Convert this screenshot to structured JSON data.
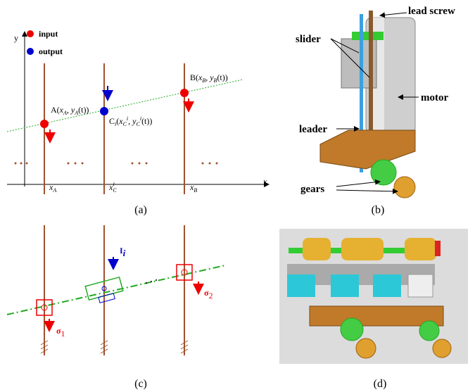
{
  "panel_a": {
    "legend": [
      "input",
      "output"
    ],
    "axis_x": "x",
    "axis_y": "y",
    "point_a": [
      "A(",
      "x",
      "A",
      ", ",
      "y",
      "A",
      "(t))"
    ],
    "point_b": [
      "B(",
      "x",
      "B",
      ", ",
      "y",
      "B",
      "(t))"
    ],
    "point_c": [
      "C",
      "i",
      "(",
      "x",
      "C",
      "i",
      ", ",
      "y",
      "C",
      "i",
      "(t))"
    ],
    "tick_a": [
      "x",
      "A"
    ],
    "tick_c": [
      "x",
      "C",
      "i"
    ],
    "tick_b": [
      "x",
      "B"
    ]
  },
  "panel_b": {
    "labels": [
      "lead screw",
      "slider",
      "motor",
      "leader",
      "gears"
    ]
  },
  "panel_c": {
    "load": [
      "I",
      "i"
    ],
    "sigma_1": [
      "σ",
      "1"
    ],
    "sigma_2": [
      "σ",
      "2"
    ]
  },
  "captions": [
    "(a)",
    "(b)",
    "(c)",
    "(d)"
  ]
}
